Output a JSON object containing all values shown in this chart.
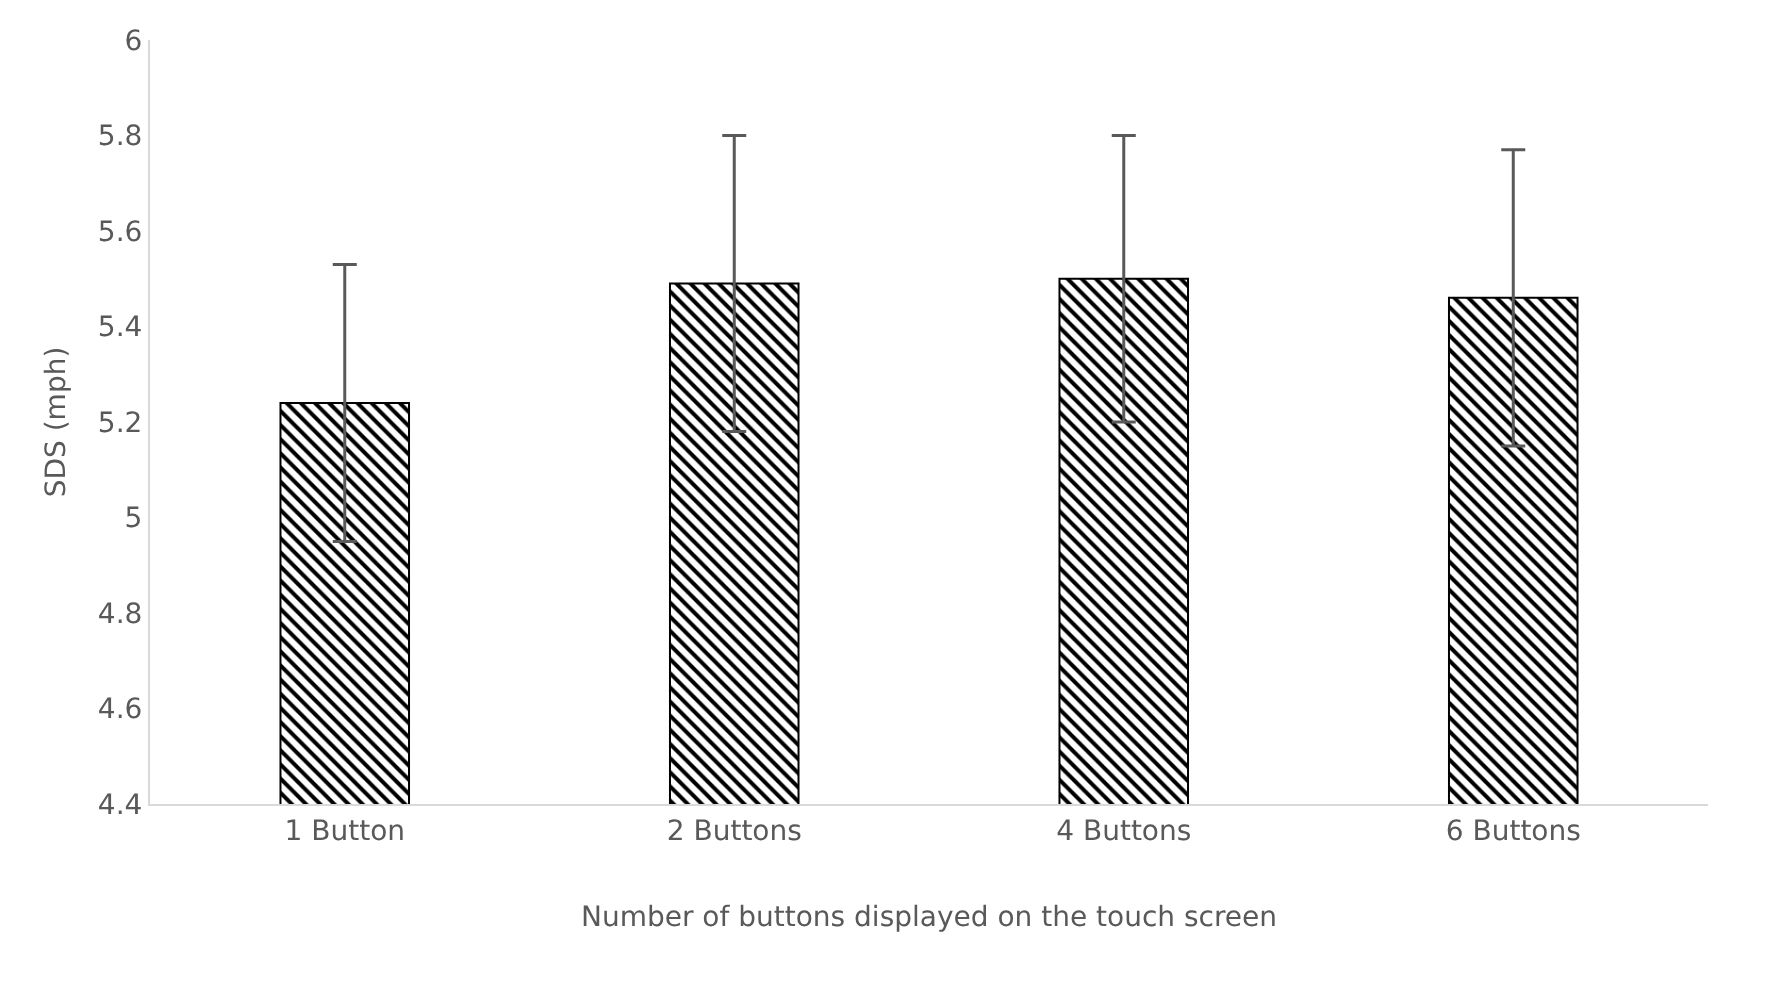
{
  "chart_data": {
    "type": "bar",
    "xlabel": "Number of buttons displayed on the touch screen",
    "ylabel": "SDS (mph)",
    "categories": [
      "1 Button",
      "2 Buttons",
      "4 Buttons",
      "6 Buttons"
    ],
    "values": [
      5.24,
      5.49,
      5.5,
      5.46
    ],
    "errors": [
      0.29,
      0.31,
      0.3,
      0.31
    ],
    "color": "#000000",
    "ylim": [
      4.4,
      6
    ],
    "yticks": [
      4.4,
      4.6,
      4.8,
      5,
      5.2,
      5.4,
      5.6,
      5.8,
      6
    ],
    "grid": false
  }
}
